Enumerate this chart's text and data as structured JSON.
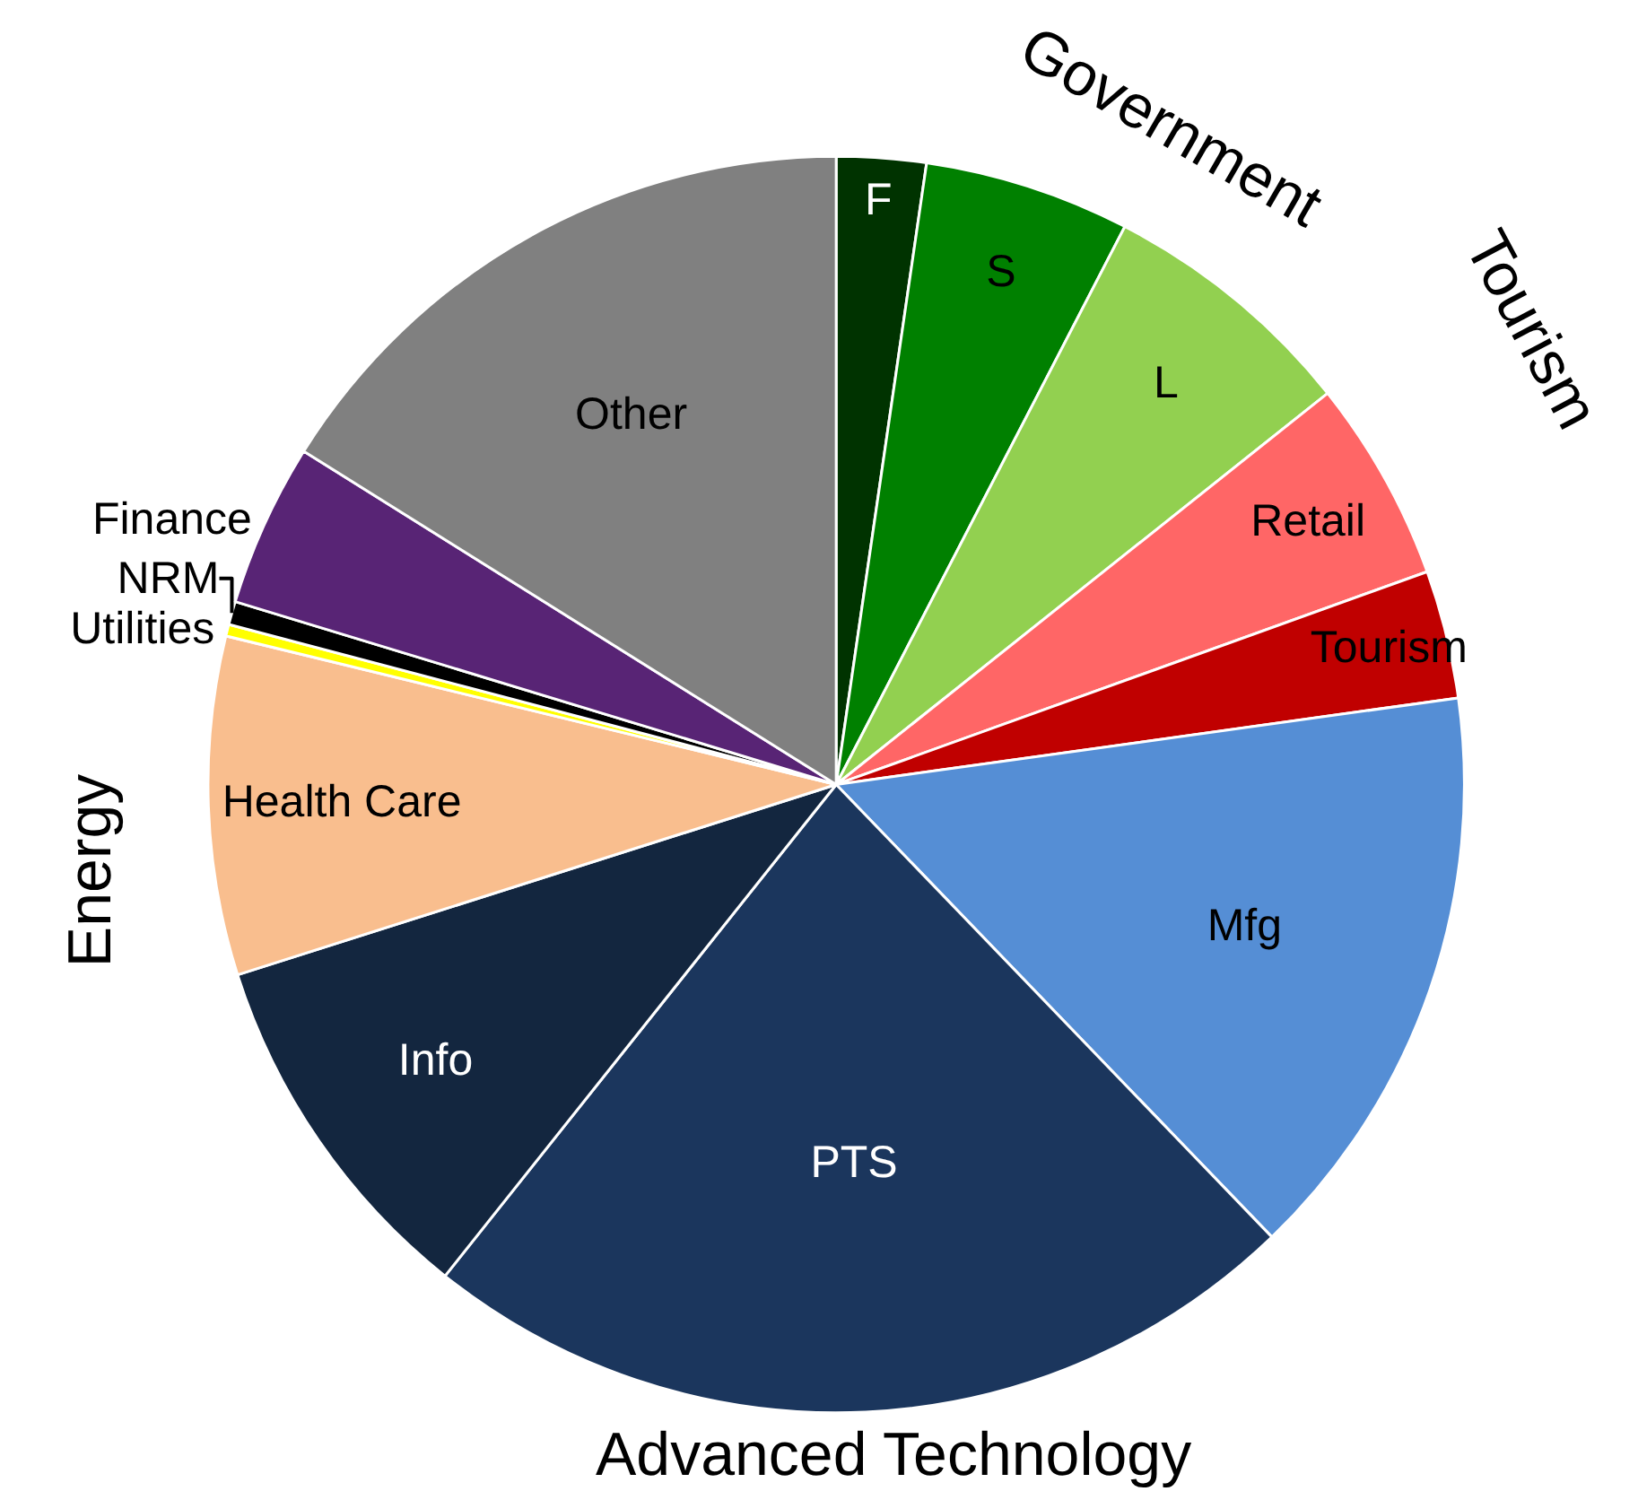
{
  "chart_data": {
    "type": "pie",
    "categories": [
      "F",
      "S",
      "L",
      "Retail",
      "Tourism",
      "Mfg",
      "PTS",
      "Info",
      "Health Care",
      "Utilities",
      "NRM",
      "Finance",
      "Other"
    ],
    "values": [
      2.3,
      5.3,
      6.7,
      5.2,
      3.3,
      15.0,
      22.9,
      9.4,
      8.7,
      0.3,
      0.6,
      4.2,
      16.1
    ],
    "colors": [
      "#003300",
      "#008000",
      "#92d050",
      "#ff6666",
      "#c00000",
      "#558ed5",
      "#1b365d",
      "#13263f",
      "#f9be8e",
      "#ffff00",
      "#000000",
      "#582475",
      "#808080"
    ],
    "annotations": [
      "Government",
      "Tourism",
      "Energy",
      "Advanced Technology"
    ],
    "legend": false
  }
}
